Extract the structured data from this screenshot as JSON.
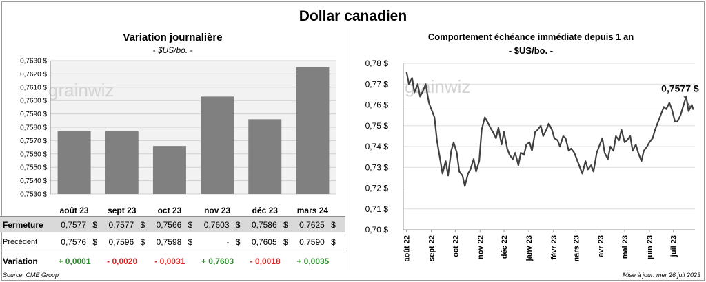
{
  "title": "Dollar canadien",
  "left_chart": {
    "title": "Variation  journalière",
    "unit": "- $US/bo. -",
    "watermark": "grainwiz"
  },
  "right_chart": {
    "title": "Comportement échéance immédiate depuis 1 an",
    "unit": "- $US/bo. -",
    "watermark": "grainwiz",
    "last_value_label": "0,7577 $"
  },
  "chart_data": [
    {
      "type": "bar",
      "title": "Variation  journalière",
      "categories": [
        "août 23",
        "sept 23",
        "oct 23",
        "nov 23",
        "déc 23",
        "mars 24"
      ],
      "values": [
        0.7577,
        0.7577,
        0.7566,
        0.7603,
        0.7586,
        0.7625
      ],
      "ylim": [
        0.753,
        0.763
      ],
      "yticks": [
        "0,7530 $",
        "0,7540 $",
        "0,7550 $",
        "0,7560 $",
        "0,7570 $",
        "0,7580 $",
        "0,7590 $",
        "0,7600 $",
        "0,7610 $",
        "0,7620 $",
        "0,7630 $"
      ],
      "color": "#808080",
      "grid": true
    },
    {
      "type": "line",
      "title": "Comportement échéance immédiate depuis 1 an",
      "x": [
        "2022-08-01",
        "2022-08-04",
        "2022-08-08",
        "2022-08-11",
        "2022-08-15",
        "2022-08-18",
        "2022-08-22",
        "2022-08-25",
        "2022-08-29",
        "2022-09-01",
        "2022-09-05",
        "2022-09-08",
        "2022-09-12",
        "2022-09-15",
        "2022-09-19",
        "2022-09-22",
        "2022-09-26",
        "2022-09-29",
        "2022-10-03",
        "2022-10-06",
        "2022-10-10",
        "2022-10-13",
        "2022-10-17",
        "2022-10-20",
        "2022-10-24",
        "2022-10-27",
        "2022-10-31",
        "2022-11-03",
        "2022-11-07",
        "2022-11-10",
        "2022-11-14",
        "2022-11-17",
        "2022-11-21",
        "2022-11-24",
        "2022-11-28",
        "2022-12-01",
        "2022-12-05",
        "2022-12-08",
        "2022-12-12",
        "2022-12-15",
        "2022-12-19",
        "2022-12-22",
        "2022-12-26",
        "2022-12-29",
        "2023-01-02",
        "2023-01-05",
        "2023-01-09",
        "2023-01-12",
        "2023-01-16",
        "2023-01-19",
        "2023-01-23",
        "2023-01-26",
        "2023-01-30",
        "2023-02-02",
        "2023-02-06",
        "2023-02-09",
        "2023-02-13",
        "2023-02-16",
        "2023-02-20",
        "2023-02-23",
        "2023-02-27",
        "2023-03-02",
        "2023-03-06",
        "2023-03-09",
        "2023-03-13",
        "2023-03-16",
        "2023-03-20",
        "2023-03-23",
        "2023-03-27",
        "2023-03-30",
        "2023-04-03",
        "2023-04-06",
        "2023-04-10",
        "2023-04-13",
        "2023-04-17",
        "2023-04-20",
        "2023-04-24",
        "2023-04-27",
        "2023-05-01",
        "2023-05-04",
        "2023-05-08",
        "2023-05-11",
        "2023-05-15",
        "2023-05-18",
        "2023-05-22",
        "2023-05-25",
        "2023-05-29",
        "2023-06-01",
        "2023-06-05",
        "2023-06-08",
        "2023-06-12",
        "2023-06-15",
        "2023-06-19",
        "2023-06-22",
        "2023-06-26",
        "2023-06-29",
        "2023-07-03",
        "2023-07-06",
        "2023-07-10",
        "2023-07-13",
        "2023-07-17",
        "2023-07-20",
        "2023-07-24",
        "2023-07-26"
      ],
      "values": [
        0.776,
        0.77,
        0.773,
        0.766,
        0.77,
        0.764,
        0.767,
        0.77,
        0.761,
        0.758,
        0.754,
        0.743,
        0.734,
        0.727,
        0.733,
        0.726,
        0.738,
        0.742,
        0.737,
        0.728,
        0.726,
        0.721,
        0.727,
        0.729,
        0.734,
        0.728,
        0.733,
        0.748,
        0.754,
        0.752,
        0.749,
        0.747,
        0.744,
        0.749,
        0.741,
        0.747,
        0.739,
        0.736,
        0.734,
        0.737,
        0.731,
        0.737,
        0.736,
        0.741,
        0.742,
        0.738,
        0.747,
        0.748,
        0.75,
        0.745,
        0.748,
        0.751,
        0.748,
        0.744,
        0.743,
        0.74,
        0.745,
        0.744,
        0.738,
        0.739,
        0.737,
        0.734,
        0.73,
        0.727,
        0.733,
        0.729,
        0.731,
        0.728,
        0.737,
        0.74,
        0.744,
        0.737,
        0.734,
        0.74,
        0.738,
        0.745,
        0.743,
        0.748,
        0.742,
        0.743,
        0.745,
        0.738,
        0.741,
        0.737,
        0.733,
        0.738,
        0.74,
        0.742,
        0.744,
        0.748,
        0.752,
        0.755,
        0.759,
        0.758,
        0.761,
        0.758,
        0.752,
        0.752,
        0.755,
        0.759,
        0.764,
        0.757,
        0.76,
        0.7577
      ],
      "ylim": [
        0.7,
        0.78
      ],
      "yticks": [
        "0,70 $",
        "0,71 $",
        "0,72 $",
        "0,73 $",
        "0,74 $",
        "0,75 $",
        "0,76 $",
        "0,77 $",
        "0,78 $"
      ],
      "xticks": [
        "août 22",
        "sept 22",
        "oct 22",
        "nov 22",
        "déc 22",
        "janv 23",
        "févr 23",
        "mars 23",
        "avr 23",
        "mai 23",
        "juin 23",
        "juil 23"
      ],
      "color": "#404040",
      "grid": true
    }
  ],
  "table": {
    "columns": [
      "août 23",
      "sept 23",
      "oct 23",
      "nov 23",
      "déc 23",
      "mars 24"
    ],
    "rows": [
      {
        "label": "Fermeture",
        "values": [
          "0,7577",
          "0,7577",
          "0,7566",
          "0,7603",
          "0,7586",
          "0,7625"
        ],
        "currency": "$"
      },
      {
        "label": "Précédent",
        "values": [
          "0,7576",
          "0,7596",
          "0,7598",
          "-",
          "0,7605",
          "0,7590"
        ],
        "currency": "$"
      }
    ],
    "variation": {
      "label": "Variation",
      "values": [
        "+ 0,0001",
        "- 0,0020",
        "- 0,0031",
        "+ 0,7603",
        "- 0,0018",
        "+ 0,0035"
      ],
      "signs": [
        "pos",
        "neg",
        "neg",
        "pos",
        "neg",
        "pos"
      ]
    }
  },
  "footer": {
    "source": "Source: CME Group",
    "updated": "Mise à jour: mer 26 juil 2023"
  }
}
